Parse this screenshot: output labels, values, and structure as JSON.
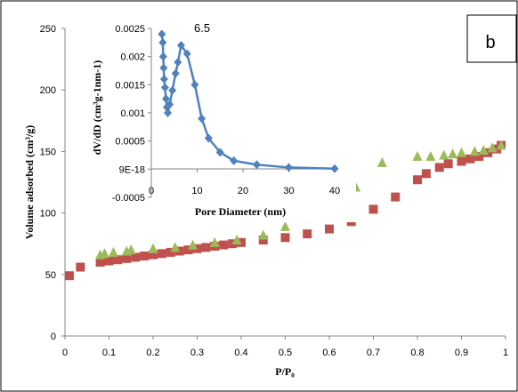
{
  "panel_label": "b",
  "chart_data": [
    {
      "type": "scatter",
      "xlabel": "P/P₀",
      "ylabel": "Volume adsorbed (cm³/g)",
      "xlim": [
        0,
        1
      ],
      "ylim": [
        0,
        250
      ],
      "x_ticks": [
        "0",
        "0.1",
        "0.2",
        "0.3",
        "0.4",
        "0.5",
        "0.6",
        "0.7",
        "0.8",
        "0.9",
        "1"
      ],
      "y_ticks": [
        "0",
        "50",
        "100",
        "150",
        "200",
        "250"
      ],
      "grid": false,
      "series": [
        {
          "marker": "square",
          "color": "#c0504d",
          "points": [
            [
              0.01,
              49
            ],
            [
              0.035,
              56
            ],
            [
              0.08,
              60
            ],
            [
              0.1,
              61
            ],
            [
              0.12,
              62
            ],
            [
              0.14,
              63
            ],
            [
              0.16,
              64
            ],
            [
              0.18,
              65
            ],
            [
              0.2,
              66
            ],
            [
              0.22,
              67
            ],
            [
              0.24,
              68
            ],
            [
              0.26,
              69
            ],
            [
              0.28,
              70
            ],
            [
              0.3,
              71
            ],
            [
              0.32,
              72
            ],
            [
              0.34,
              73
            ],
            [
              0.36,
              74
            ],
            [
              0.38,
              75
            ],
            [
              0.4,
              76
            ],
            [
              0.45,
              78
            ],
            [
              0.5,
              80
            ],
            [
              0.55,
              83
            ],
            [
              0.6,
              87
            ],
            [
              0.65,
              93
            ],
            [
              0.7,
              103
            ],
            [
              0.75,
              113
            ],
            [
              0.8,
              127
            ],
            [
              0.82,
              132
            ],
            [
              0.85,
              137
            ],
            [
              0.87,
              140
            ],
            [
              0.9,
              142
            ],
            [
              0.92,
              144
            ],
            [
              0.94,
              146
            ],
            [
              0.96,
              149
            ],
            [
              0.98,
              152
            ],
            [
              0.99,
              155
            ]
          ]
        },
        {
          "marker": "triangle",
          "color": "#9bbb59",
          "points": [
            [
              0.08,
              66
            ],
            [
              0.09,
              67
            ],
            [
              0.11,
              68
            ],
            [
              0.14,
              69
            ],
            [
              0.15,
              70
            ],
            [
              0.2,
              71
            ],
            [
              0.25,
              72
            ],
            [
              0.29,
              74
            ],
            [
              0.34,
              76
            ],
            [
              0.39,
              78
            ],
            [
              0.45,
              82
            ],
            [
              0.5,
              89
            ],
            [
              0.55,
              96
            ],
            [
              0.6,
              107
            ],
            [
              0.66,
              121
            ],
            [
              0.72,
              141
            ],
            [
              0.8,
              146
            ],
            [
              0.83,
              146
            ],
            [
              0.86,
              147
            ],
            [
              0.88,
              148
            ],
            [
              0.9,
              149
            ],
            [
              0.93,
              150
            ],
            [
              0.95,
              151
            ],
            [
              0.97,
              153
            ],
            [
              0.99,
              155
            ]
          ]
        }
      ]
    },
    {
      "type": "line",
      "xlabel": "Pore Diameter (nm)",
      "ylabel": "dV/dD (cm³g-1nm-1)",
      "xlim": [
        0,
        40
      ],
      "ylim": [
        -0.0005,
        0.0025
      ],
      "x_ticks": [
        "0",
        "10",
        "20",
        "30",
        "40"
      ],
      "y_ticks": [
        "-0.0005",
        "9E-18",
        "0.0005",
        "0.001",
        "0.0015",
        "0.002",
        "0.0025"
      ],
      "annotation": "6.5",
      "series": [
        {
          "marker": "diamond",
          "color": "#4f81bd",
          "points": [
            [
              2.3,
              0.0024
            ],
            [
              2.5,
              0.00225
            ],
            [
              2.6,
              0.002
            ],
            [
              2.7,
              0.0018
            ],
            [
              2.8,
              0.0016
            ],
            [
              3.0,
              0.00145
            ],
            [
              3.2,
              0.00125
            ],
            [
              3.4,
              0.0011
            ],
            [
              3.6,
              0.001
            ],
            [
              4.0,
              0.00115
            ],
            [
              4.6,
              0.0014
            ],
            [
              5.3,
              0.0017
            ],
            [
              5.8,
              0.0019
            ],
            [
              6.5,
              0.0022
            ],
            [
              7.8,
              0.00205
            ],
            [
              9.5,
              0.0015
            ],
            [
              11.0,
              0.0009
            ],
            [
              12.5,
              0.00055
            ],
            [
              15.0,
              0.0003
            ],
            [
              18.0,
              0.00015
            ],
            [
              23.0,
              8e-05
            ],
            [
              30.0,
              3e-05
            ],
            [
              40.0,
              1e-05
            ]
          ]
        }
      ]
    }
  ]
}
